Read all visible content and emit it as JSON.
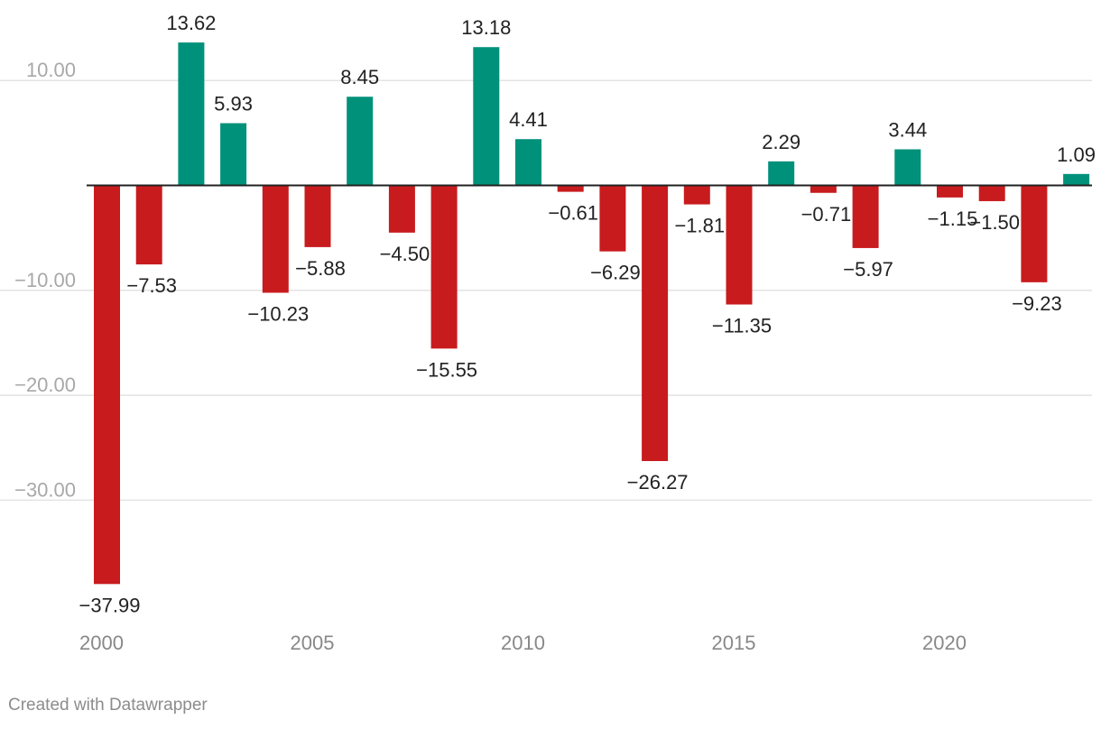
{
  "chart_data": {
    "type": "bar",
    "title": "",
    "xlabel": "",
    "ylabel": "",
    "categories": [
      "2000",
      "2001",
      "2002",
      "2003",
      "2004",
      "2005",
      "2006",
      "2007",
      "2008",
      "2009",
      "2010",
      "2011",
      "2012",
      "2013",
      "2014",
      "2015",
      "2016",
      "2017",
      "2018",
      "2019",
      "2020",
      "2021",
      "2022",
      "2023"
    ],
    "values": [
      -37.99,
      -7.53,
      13.62,
      5.93,
      -10.23,
      -5.88,
      8.45,
      -4.5,
      -15.55,
      13.18,
      4.41,
      -0.61,
      -6.29,
      -26.27,
      -1.81,
      -11.35,
      2.29,
      -0.71,
      -5.97,
      3.44,
      -1.15,
      -1.5,
      -9.23,
      1.09
    ],
    "data_labels": [
      "−37.99",
      "−7.53",
      "13.62",
      "5.93",
      "−10.23",
      "−5.88",
      "8.45",
      "−4.50",
      "−15.55",
      "13.18",
      "4.41",
      "−0.61",
      "−6.29",
      "−26.27",
      "−1.81",
      "−11.35",
      "2.29",
      "−0.71",
      "−5.97",
      "3.44",
      "−1.15",
      "−1.50",
      "−9.23",
      "1.09"
    ],
    "ylim": [
      -38,
      14
    ],
    "y_ticks": [
      10,
      -10,
      -20,
      -30
    ],
    "y_tick_labels": [
      "10.00",
      "−10.00",
      "−20.00",
      "−30.00"
    ],
    "x_ticks": [
      2000,
      2005,
      2010,
      2015,
      2020
    ],
    "x_tick_labels": [
      "2000",
      "2005",
      "2010",
      "2015",
      "2020"
    ],
    "grid": true,
    "colors": {
      "positive": "#00917a",
      "negative": "#c81b1e"
    }
  },
  "footer": {
    "credit": "Created with Datawrapper"
  }
}
